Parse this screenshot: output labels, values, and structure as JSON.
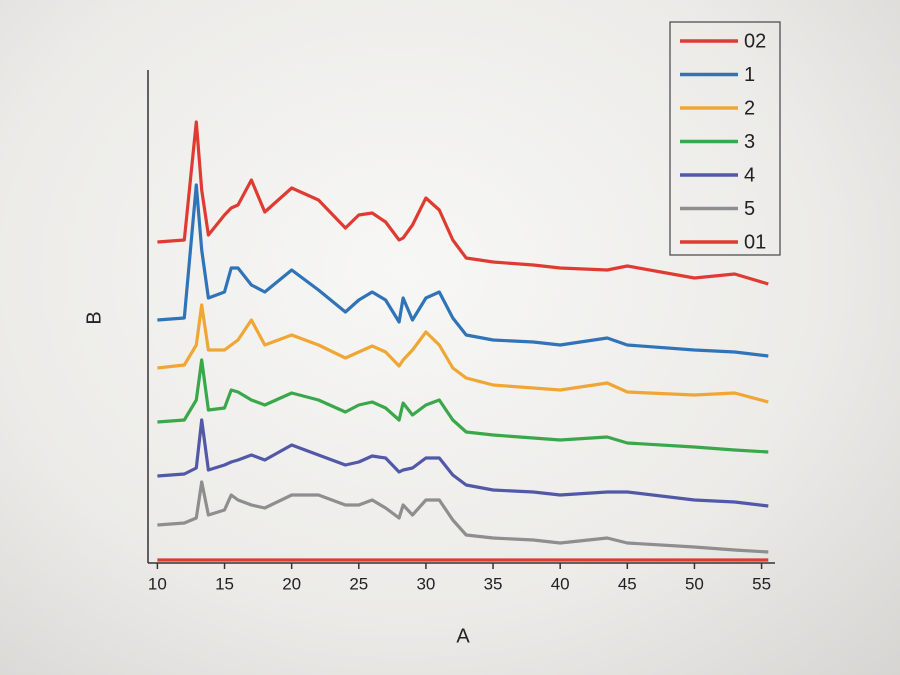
{
  "chart_data": {
    "type": "line",
    "xlabel": "A",
    "ylabel": "B",
    "x": [
      10,
      12,
      12.9,
      13.3,
      13.8,
      15,
      15.5,
      16,
      17,
      18,
      20,
      22,
      24,
      25,
      26,
      27,
      28,
      28.3,
      29,
      30,
      31,
      32,
      33,
      35,
      38,
      40,
      43.5,
      45,
      50,
      53,
      55.5
    ],
    "xlim": [
      9.3,
      56
    ],
    "xticks": [
      10,
      15,
      20,
      25,
      30,
      35,
      40,
      45,
      50,
      55
    ],
    "ylim": [
      0,
      500
    ],
    "legend": "upper right",
    "series": [
      {
        "name": "02",
        "color": "#e03b32",
        "values": [
          321,
          323,
          441,
          373,
          328,
          348,
          355,
          358,
          383,
          351,
          375,
          363,
          335,
          348,
          350,
          341,
          323,
          325,
          338,
          365,
          353,
          323,
          305,
          301,
          298,
          295,
          293,
          297,
          285,
          289,
          279
        ]
      },
      {
        "name": "1",
        "color": "#2f73b8",
        "values": [
          243,
          245,
          378,
          313,
          265,
          271,
          295,
          295,
          278,
          271,
          293,
          273,
          251,
          263,
          271,
          263,
          241,
          265,
          243,
          265,
          271,
          245,
          228,
          223,
          221,
          218,
          225,
          218,
          213,
          211,
          207
        ]
      },
      {
        "name": "2",
        "color": "#f0a635",
        "values": [
          195,
          198,
          218,
          258,
          213,
          213,
          218,
          223,
          243,
          218,
          228,
          218,
          205,
          211,
          217,
          211,
          197,
          203,
          213,
          231,
          218,
          195,
          185,
          178,
          175,
          173,
          180,
          171,
          168,
          170,
          161
        ]
      },
      {
        "name": "3",
        "color": "#3aa84a",
        "values": [
          141,
          143,
          163,
          203,
          153,
          155,
          173,
          171,
          163,
          158,
          170,
          163,
          151,
          158,
          161,
          155,
          143,
          160,
          148,
          158,
          163,
          143,
          131,
          128,
          125,
          123,
          126,
          120,
          116,
          113,
          111
        ]
      },
      {
        "name": "4",
        "color": "#5258a8",
        "values": [
          87,
          89,
          95,
          143,
          93,
          98,
          101,
          103,
          108,
          103,
          118,
          108,
          98,
          101,
          107,
          105,
          91,
          93,
          95,
          105,
          105,
          88,
          78,
          73,
          71,
          68,
          71,
          71,
          63,
          61,
          57
        ]
      },
      {
        "name": "5",
        "color": "#8e8e8e",
        "values": [
          38,
          40,
          45,
          81,
          48,
          53,
          68,
          63,
          58,
          55,
          68,
          68,
          58,
          58,
          63,
          55,
          45,
          58,
          48,
          63,
          63,
          43,
          28,
          25,
          23,
          20,
          25,
          20,
          16,
          13,
          11
        ]
      },
      {
        "name": "01",
        "color": "#e03b32",
        "values": [
          3,
          3,
          3,
          3,
          3,
          3,
          3,
          3,
          3,
          3,
          3,
          3,
          3,
          3,
          3,
          3,
          3,
          3,
          3,
          3,
          3,
          3,
          3,
          3,
          3,
          3,
          3,
          3,
          3,
          3,
          3
        ]
      }
    ]
  }
}
